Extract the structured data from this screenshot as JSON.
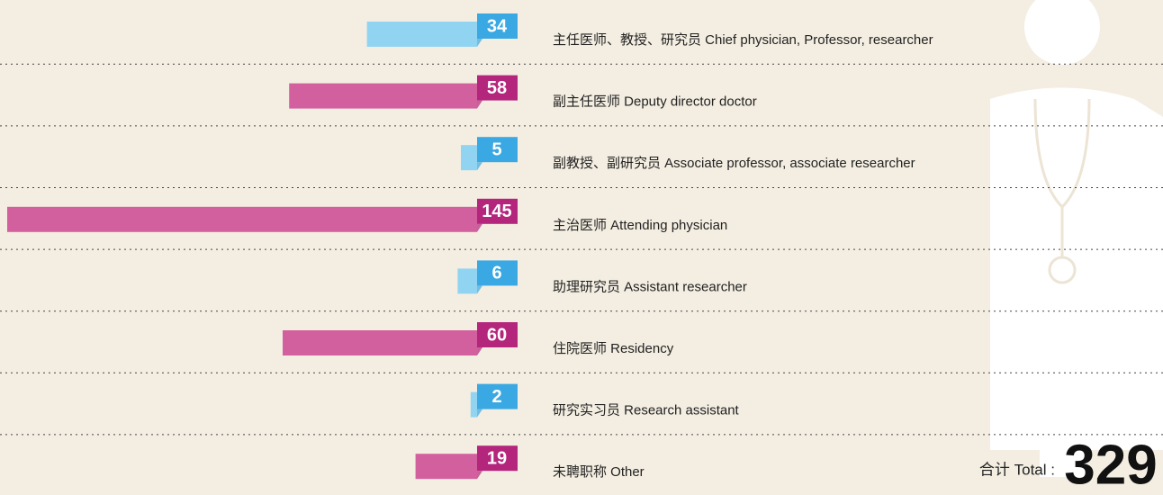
{
  "chart_data": {
    "type": "bar",
    "categories": [
      "主任医师、教授、研究员 Chief physician, Professor, researcher",
      "副主任医师 Deputy director doctor",
      "副教授、副研究员 Associate professor, associate researcher",
      "主治医师 Attending physician",
      "助理研究员 Assistant researcher",
      "住院医师 Residency",
      "研究实习员 Research assistant",
      "未聘职称 Other"
    ],
    "values": [
      34,
      58,
      5,
      145,
      6,
      60,
      2,
      19
    ],
    "colors": [
      "#91d4f2",
      "#d2609f",
      "#91d4f2",
      "#d2609f",
      "#91d4f2",
      "#d2609f",
      "#91d4f2",
      "#d2609f"
    ],
    "tag_colors": [
      "#3aa8e2",
      "#b4257c",
      "#3aa8e2",
      "#b4257c",
      "#3aa8e2",
      "#b4257c",
      "#3aa8e2",
      "#b4257c"
    ],
    "total_label": "合计 Total :",
    "total": 329
  }
}
